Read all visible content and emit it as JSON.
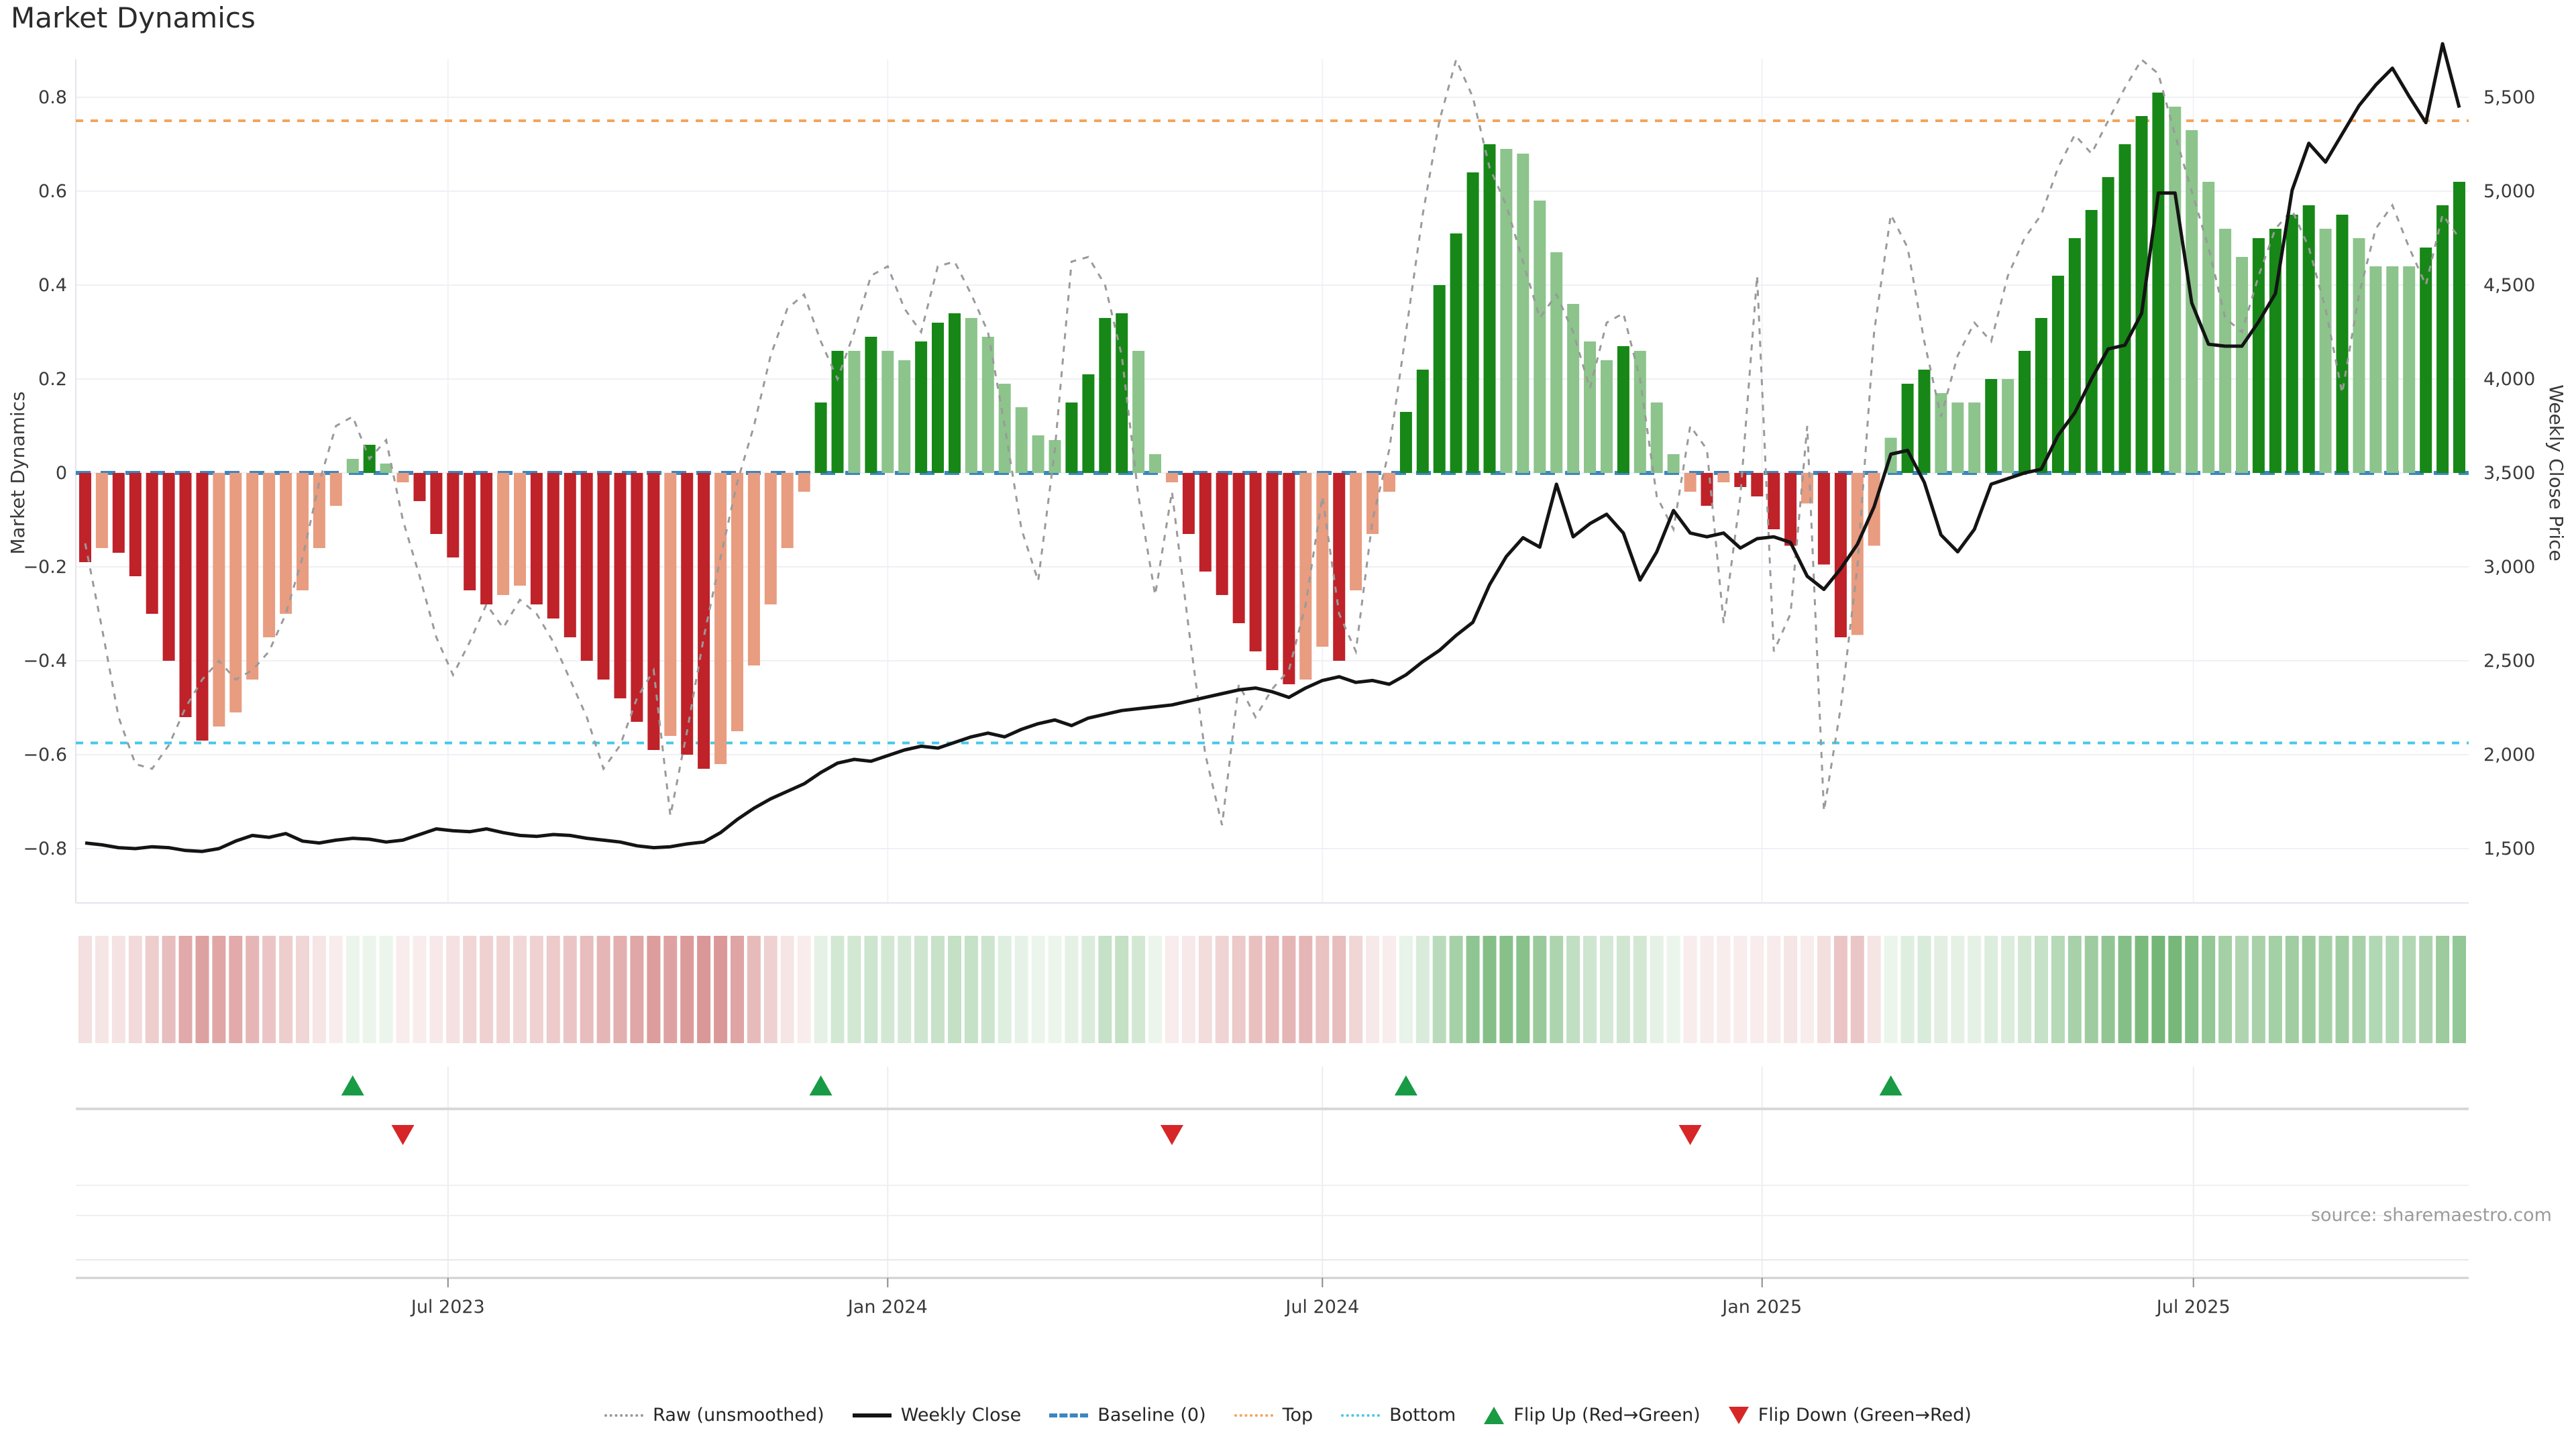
{
  "title": "Market Dynamics",
  "source_note": "source: sharemaestro.com",
  "axes": {
    "left": {
      "label": "Market Dynamics",
      "ticks": [
        {
          "label": "0.8",
          "value": 0.8
        },
        {
          "label": "0.6",
          "value": 0.6
        },
        {
          "label": "0.4",
          "value": 0.4
        },
        {
          "label": "0.2",
          "value": 0.2
        },
        {
          "label": "0",
          "value": 0.0
        },
        {
          "label": "−0.2",
          "value": -0.2
        },
        {
          "label": "−0.4",
          "value": -0.4
        },
        {
          "label": "−0.6",
          "value": -0.6
        },
        {
          "label": "−0.8",
          "value": -0.8
        }
      ]
    },
    "right": {
      "label": "Weekly Close Price",
      "ticks": [
        {
          "label": "1,500",
          "value": 1500
        },
        {
          "label": "2,000",
          "value": 2000
        },
        {
          "label": "2,500",
          "value": 2500
        },
        {
          "label": "3,000",
          "value": 3000
        },
        {
          "label": "3,500",
          "value": 3500
        },
        {
          "label": "4,000",
          "value": 4000
        },
        {
          "label": "4,500",
          "value": 4500
        },
        {
          "label": "5,000",
          "value": 5000
        },
        {
          "label": "5,500",
          "value": 5500
        }
      ]
    },
    "x": {
      "ticks": [
        {
          "label": "Jul 2023",
          "week": 21.7
        },
        {
          "label": "Jan 2024",
          "week": 48.0
        },
        {
          "label": "Jul 2024",
          "week": 74.0
        },
        {
          "label": "Jan 2025",
          "week": 100.3
        },
        {
          "label": "Jul 2025",
          "week": 126.1
        }
      ]
    }
  },
  "legend": [
    {
      "label": "Raw (unsmoothed)",
      "type": "dotted-line",
      "color": "#999999"
    },
    {
      "label": "Weekly Close",
      "type": "solid-line",
      "color": "#141414"
    },
    {
      "label": "Baseline (0)",
      "type": "dashed-line",
      "color": "#3c86c0"
    },
    {
      "label": "Top",
      "type": "dotted-line",
      "color": "#f2a45c"
    },
    {
      "label": "Bottom",
      "type": "dotted-line",
      "color": "#45c8e8"
    },
    {
      "label": "Flip Up (Red→Green)",
      "type": "triangle-up",
      "color": "#189b44"
    },
    {
      "label": "Flip Down (Green→Red)",
      "type": "triangle-down",
      "color": "#d62628"
    }
  ],
  "colors": {
    "bar_neg_strong": "#bf2229",
    "bar_neg_weak": "#e89c80",
    "bar_pos_strong": "#178717",
    "bar_pos_weak": "#8cc48c",
    "baseline_line": "#3c86c0",
    "top_line": "#f2a45c",
    "bottom_line": "#45c8e8",
    "raw_line": "#9a9a9a",
    "price_line": "#141414",
    "grid": "#eef0f5",
    "grid_vertical": "#f2f2f7",
    "panel_line": "#d8d8d8",
    "axis_text": "#3a3a3a",
    "flip_up": "#189b44",
    "flip_down": "#d62628"
  },
  "chart_data": {
    "type": "bar",
    "subtype": "combo-bar-line-heatmap",
    "title": "Market Dynamics",
    "x_start_date": "2023-01-30",
    "x_freq": "weekly",
    "weeks": 143,
    "ylabel_left": "Market Dynamics",
    "ylabel_right": "Weekly Close Price",
    "ylim_left": [
      -0.92,
      0.88
    ],
    "price_map": {
      "dyn0_price": 3500,
      "price_per_dyn": 2500
    },
    "reference_lines": {
      "baseline": 0.0,
      "top": 0.75,
      "bottom": -0.575
    },
    "flip_up_weeks": [
      16,
      44,
      79,
      108
    ],
    "flip_down_weeks": [
      19,
      65,
      96
    ],
    "dynamics": [
      -0.19,
      -0.16,
      -0.17,
      -0.22,
      -0.3,
      -0.4,
      -0.52,
      -0.57,
      -0.54,
      -0.51,
      -0.44,
      -0.35,
      -0.3,
      -0.25,
      -0.16,
      -0.07,
      0.03,
      0.06,
      0.02,
      -0.02,
      -0.06,
      -0.13,
      -0.18,
      -0.25,
      -0.28,
      -0.26,
      -0.24,
      -0.28,
      -0.31,
      -0.35,
      -0.4,
      -0.44,
      -0.48,
      -0.53,
      -0.59,
      -0.56,
      -0.6,
      -0.63,
      -0.62,
      -0.55,
      -0.41,
      -0.28,
      -0.16,
      -0.04,
      0.15,
      0.26,
      0.26,
      0.29,
      0.26,
      0.24,
      0.28,
      0.32,
      0.34,
      0.33,
      0.29,
      0.19,
      0.14,
      0.08,
      0.07,
      0.15,
      0.21,
      0.33,
      0.34,
      0.26,
      0.04,
      -0.02,
      -0.13,
      -0.21,
      -0.26,
      -0.32,
      -0.38,
      -0.42,
      -0.45,
      -0.44,
      -0.37,
      -0.4,
      -0.25,
      -0.13,
      -0.04,
      0.13,
      0.22,
      0.4,
      0.51,
      0.64,
      0.7,
      0.69,
      0.68,
      0.58,
      0.47,
      0.36,
      0.28,
      0.24,
      0.27,
      0.26,
      0.15,
      0.04,
      -0.04,
      -0.07,
      -0.02,
      -0.03,
      -0.05,
      -0.12,
      -0.155,
      -0.065,
      -0.195,
      -0.35,
      -0.345,
      -0.155,
      0.075,
      0.19,
      0.22,
      0.17,
      0.15,
      0.15,
      0.2,
      0.2,
      0.26,
      0.33,
      0.42,
      0.5,
      0.56,
      0.63,
      0.7,
      0.76,
      0.81,
      0.78,
      0.73,
      0.62,
      0.52,
      0.46,
      0.5,
      0.52,
      0.55,
      0.57,
      0.52,
      0.55,
      0.5,
      0.44,
      0.44,
      0.44,
      0.48,
      0.57,
      0.62
    ],
    "raw": [
      -0.15,
      -0.33,
      -0.52,
      -0.62,
      -0.63,
      -0.58,
      -0.5,
      -0.44,
      -0.4,
      -0.44,
      -0.42,
      -0.38,
      -0.3,
      -0.18,
      -0.02,
      0.1,
      0.12,
      0.03,
      0.07,
      -0.1,
      -0.22,
      -0.35,
      -0.43,
      -0.36,
      -0.28,
      -0.33,
      -0.27,
      -0.3,
      -0.36,
      -0.44,
      -0.52,
      -0.63,
      -0.58,
      -0.48,
      -0.42,
      -0.73,
      -0.55,
      -0.35,
      -0.18,
      -0.02,
      0.1,
      0.25,
      0.35,
      0.38,
      0.28,
      0.2,
      0.3,
      0.42,
      0.44,
      0.35,
      0.3,
      0.44,
      0.45,
      0.38,
      0.3,
      0.1,
      -0.12,
      -0.23,
      0.05,
      0.45,
      0.46,
      0.4,
      0.25,
      -0.05,
      -0.26,
      -0.04,
      -0.33,
      -0.6,
      -0.75,
      -0.45,
      -0.52,
      -0.46,
      -0.42,
      -0.28,
      -0.05,
      -0.3,
      -0.38,
      -0.1,
      0.05,
      0.3,
      0.55,
      0.75,
      0.88,
      0.8,
      0.65,
      0.57,
      0.45,
      0.33,
      0.38,
      0.3,
      0.18,
      0.32,
      0.34,
      0.2,
      -0.05,
      -0.12,
      0.1,
      0.05,
      -0.32,
      -0.05,
      0.42,
      -0.38,
      -0.3,
      0.1,
      -0.72,
      -0.5,
      -0.2,
      0.3,
      0.55,
      0.48,
      0.28,
      0.12,
      0.25,
      0.32,
      0.28,
      0.42,
      0.5,
      0.55,
      0.65,
      0.72,
      0.68,
      0.75,
      0.82,
      0.88,
      0.85,
      0.72,
      0.6,
      0.48,
      0.33,
      0.3,
      0.42,
      0.52,
      0.56,
      0.48,
      0.35,
      0.17,
      0.38,
      0.52,
      0.57,
      0.48,
      0.4,
      0.55,
      0.5
    ],
    "weekly_close": [
      1530,
      1520,
      1505,
      1500,
      1510,
      1505,
      1490,
      1485,
      1500,
      1540,
      1570,
      1560,
      1580,
      1540,
      1530,
      1545,
      1555,
      1550,
      1535,
      1545,
      1575,
      1605,
      1595,
      1590,
      1605,
      1585,
      1570,
      1565,
      1575,
      1570,
      1555,
      1545,
      1535,
      1515,
      1505,
      1510,
      1525,
      1535,
      1585,
      1655,
      1715,
      1765,
      1805,
      1845,
      1905,
      1955,
      1975,
      1965,
      1995,
      2025,
      2045,
      2035,
      2065,
      2095,
      2115,
      2095,
      2135,
      2165,
      2185,
      2155,
      2195,
      2215,
      2235,
      2245,
      2255,
      2265,
      2285,
      2305,
      2325,
      2345,
      2355,
      2335,
      2305,
      2355,
      2395,
      2415,
      2385,
      2395,
      2375,
      2425,
      2495,
      2555,
      2635,
      2705,
      2905,
      3055,
      3155,
      3105,
      3440,
      3160,
      3230,
      3280,
      3180,
      2930,
      3080,
      3300,
      3180,
      3160,
      3180,
      3100,
      3150,
      3160,
      3130,
      2950,
      2880,
      2990,
      3120,
      3320,
      3600,
      3620,
      3450,
      3170,
      3080,
      3200,
      3440,
      3470,
      3500,
      3520,
      3700,
      3820,
      4000,
      4160,
      4180,
      4350,
      4990,
      4990,
      4405,
      4185,
      4175,
      4175,
      4305,
      4455,
      5005,
      5255,
      5155,
      5305,
      5455,
      5565,
      5655,
      5505,
      5365,
      5785,
      5445
    ]
  }
}
